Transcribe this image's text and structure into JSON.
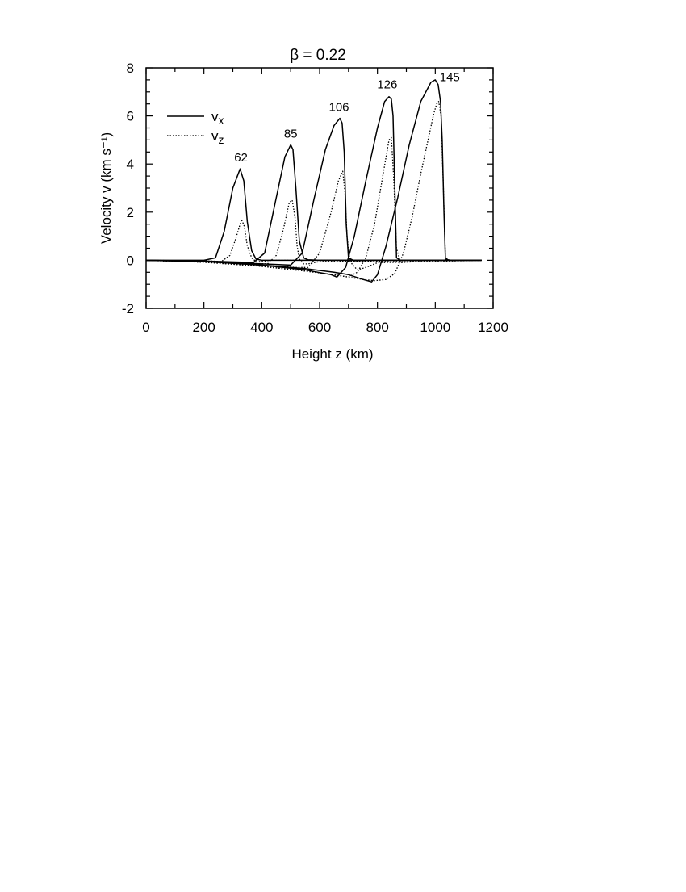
{
  "chart_data": {
    "type": "line",
    "title": "β = 0.22",
    "xlabel": "Height z  (km)",
    "ylabel": "Velocity v  (km s⁻¹)",
    "xlim": [
      0,
      1200
    ],
    "ylim": [
      -2,
      8
    ],
    "xticks": [
      0,
      200,
      400,
      600,
      800,
      1000,
      1200
    ],
    "yticks": [
      -2,
      0,
      2,
      4,
      6,
      8
    ],
    "grid": false,
    "legend": {
      "placement": "top-left",
      "entries": [
        {
          "label": "vx",
          "style": "solid"
        },
        {
          "label": "vz",
          "style": "dotted"
        }
      ]
    },
    "series": [
      {
        "name": "vx",
        "label": "62",
        "style": "solid",
        "x": [
          0,
          150,
          200,
          240,
          270,
          300,
          325,
          338,
          350,
          365,
          380,
          400,
          430,
          1160
        ],
        "y": [
          0,
          0,
          0,
          0.1,
          1.2,
          3.0,
          3.8,
          3.3,
          1.6,
          0.4,
          0.05,
          0,
          0,
          0
        ]
      },
      {
        "name": "vz",
        "label": "62",
        "style": "dotted",
        "x": [
          0,
          200,
          260,
          290,
          310,
          330,
          340,
          350,
          365,
          380,
          400,
          430,
          1160
        ],
        "y": [
          0,
          -0.02,
          -0.05,
          0.2,
          0.9,
          1.7,
          1.4,
          0.6,
          0.1,
          -0.05,
          -0.05,
          0,
          0
        ]
      },
      {
        "name": "vx",
        "label": "85",
        "style": "solid",
        "x": [
          0,
          200,
          330,
          370,
          410,
          450,
          480,
          500,
          508,
          518,
          530,
          545,
          560,
          600,
          1160
        ],
        "y": [
          0,
          -0.03,
          -0.08,
          -0.1,
          0.3,
          2.6,
          4.3,
          4.8,
          4.6,
          3.0,
          0.8,
          0.1,
          0.02,
          0,
          0
        ]
      },
      {
        "name": "vz",
        "label": "85",
        "style": "dotted",
        "x": [
          0,
          200,
          350,
          420,
          450,
          475,
          495,
          505,
          515,
          522,
          530,
          545,
          560,
          600,
          1160
        ],
        "y": [
          0,
          -0.05,
          -0.12,
          -0.15,
          0.2,
          1.3,
          2.4,
          2.5,
          1.8,
          0.6,
          0.05,
          -0.15,
          -0.15,
          -0.05,
          0
        ]
      },
      {
        "name": "vx",
        "label": "106",
        "style": "solid",
        "x": [
          0,
          200,
          400,
          500,
          540,
          580,
          620,
          650,
          670,
          678,
          685,
          692,
          700,
          720,
          760,
          1160
        ],
        "y": [
          0,
          -0.05,
          -0.15,
          -0.2,
          0.3,
          2.5,
          4.6,
          5.6,
          5.9,
          5.7,
          4.5,
          1.5,
          0.1,
          -0.02,
          0,
          0
        ]
      },
      {
        "name": "vz",
        "label": "106",
        "style": "dotted",
        "x": [
          0,
          200,
          400,
          520,
          560,
          600,
          640,
          665,
          680,
          688,
          695,
          705,
          730,
          760,
          800,
          1160
        ],
        "y": [
          0,
          -0.08,
          -0.2,
          -0.3,
          -0.3,
          0.3,
          2.0,
          3.3,
          3.7,
          2.8,
          1.0,
          -0.05,
          -0.4,
          -0.3,
          -0.1,
          0
        ]
      },
      {
        "name": "vx",
        "label": "126",
        "style": "solid",
        "x": [
          0,
          200,
          400,
          550,
          640,
          660,
          690,
          720,
          760,
          800,
          825,
          840,
          848,
          854,
          860,
          866,
          880,
          920,
          1160
        ],
        "y": [
          0,
          -0.05,
          -0.2,
          -0.4,
          -0.6,
          -0.7,
          -0.3,
          1.0,
          3.3,
          5.5,
          6.6,
          6.8,
          6.7,
          6.0,
          3.0,
          0.1,
          0,
          0,
          0
        ]
      },
      {
        "name": "vz",
        "label": "126",
        "style": "dotted",
        "x": [
          0,
          200,
          400,
          550,
          650,
          700,
          730,
          760,
          790,
          820,
          840,
          848,
          856,
          866,
          880,
          920,
          960,
          1160
        ],
        "y": [
          0,
          -0.08,
          -0.25,
          -0.45,
          -0.6,
          -0.7,
          -0.5,
          0.1,
          1.5,
          3.6,
          5.0,
          5.1,
          3.5,
          0.5,
          -0.1,
          -0.05,
          0,
          0
        ]
      },
      {
        "name": "vx",
        "label": "145",
        "style": "solid",
        "x": [
          0,
          200,
          400,
          550,
          650,
          700,
          750,
          780,
          800,
          830,
          870,
          910,
          950,
          985,
          1000,
          1010,
          1018,
          1024,
          1030,
          1035,
          1050,
          1160
        ],
        "y": [
          0,
          -0.05,
          -0.2,
          -0.35,
          -0.5,
          -0.6,
          -0.8,
          -0.9,
          -0.6,
          0.6,
          2.6,
          4.8,
          6.6,
          7.4,
          7.5,
          7.3,
          6.6,
          5.0,
          2.0,
          0.05,
          0,
          0
        ]
      },
      {
        "name": "vz",
        "label": "145",
        "style": "dotted",
        "x": [
          0,
          200,
          400,
          550,
          650,
          700,
          750,
          790,
          830,
          860,
          890,
          920,
          950,
          975,
          995,
          1005,
          1012,
          1020,
          1028,
          1035,
          1050,
          1160
        ],
        "y": [
          0,
          -0.08,
          -0.25,
          -0.45,
          -0.6,
          -0.7,
          -0.8,
          -0.85,
          -0.8,
          -0.55,
          0.3,
          1.8,
          3.6,
          5.0,
          6.1,
          6.5,
          6.6,
          6.0,
          3.0,
          0.1,
          0,
          0
        ]
      }
    ],
    "peak_labels": [
      {
        "text": "62",
        "x": 328,
        "y": 4.1
      },
      {
        "text": "85",
        "x": 500,
        "y": 5.1
      },
      {
        "text": "106",
        "x": 667,
        "y": 6.2
      },
      {
        "text": "126",
        "x": 834,
        "y": 7.15
      },
      {
        "text": "145",
        "x": 1050,
        "y": 7.45
      }
    ]
  }
}
